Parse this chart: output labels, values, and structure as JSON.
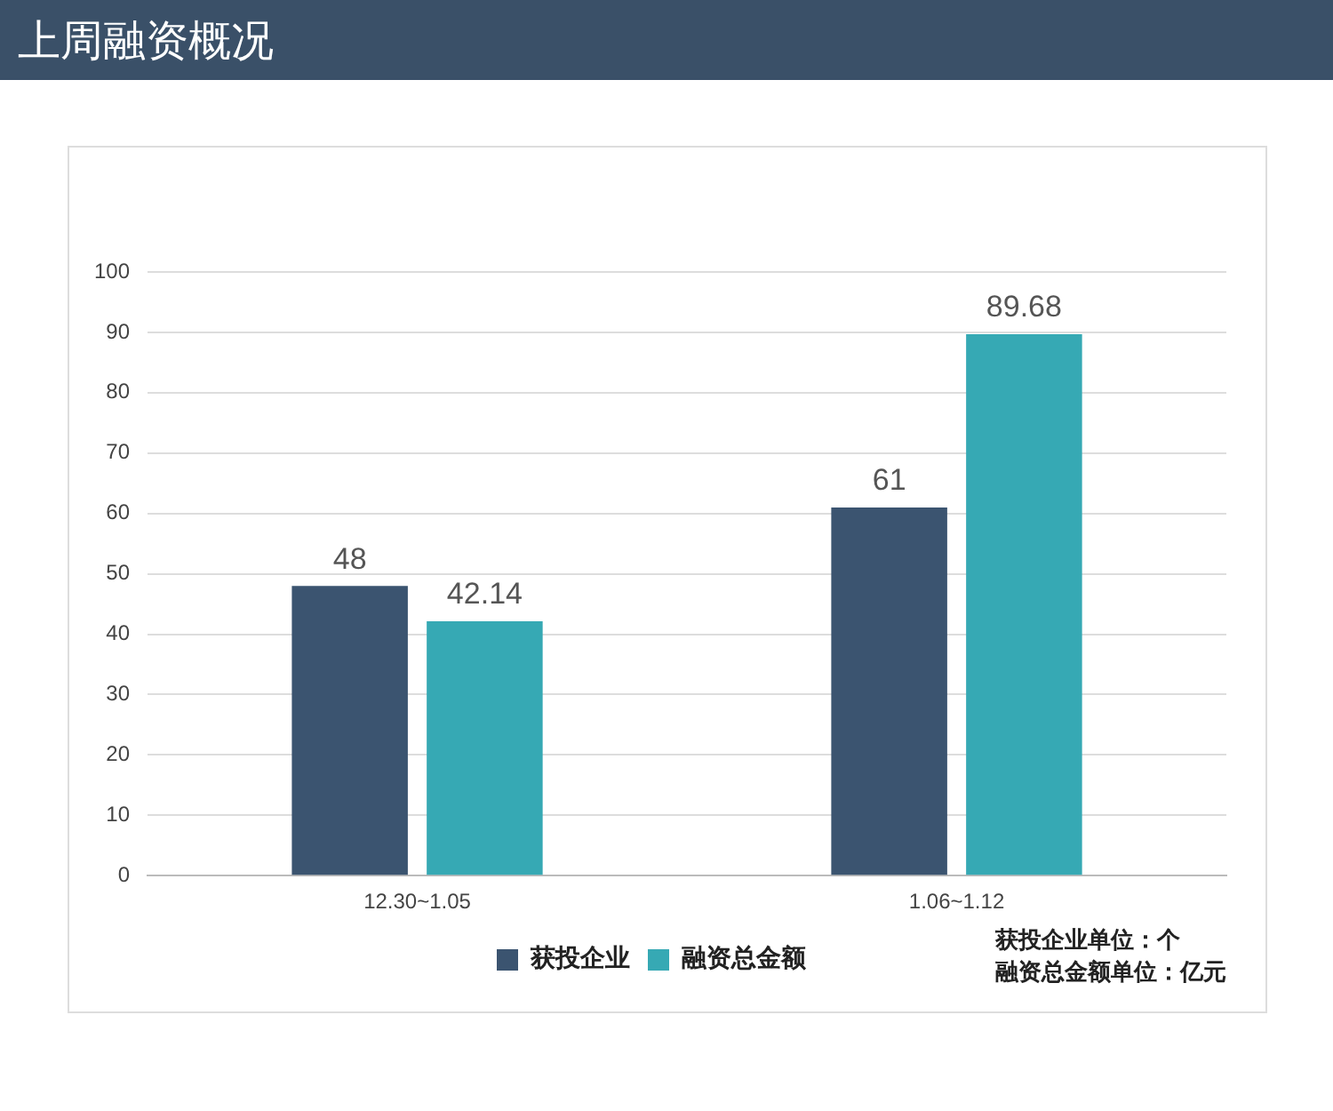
{
  "chart_data": {
    "type": "bar",
    "title": "上周融资概况",
    "categories": [
      "12.30~1.05",
      "1.06~1.12"
    ],
    "series": [
      {
        "name": "获投企业",
        "color": "#3b5470",
        "values": [
          48,
          61
        ]
      },
      {
        "name": "融资总金额",
        "color": "#36a9b4",
        "values": [
          42.14,
          89.68
        ]
      }
    ],
    "ylim": [
      0,
      100
    ],
    "yticks": [
      0,
      10,
      20,
      30,
      40,
      50,
      60,
      70,
      80,
      90,
      100
    ],
    "grid": "y",
    "legend": "bottom",
    "data_labels": true,
    "annotations": [
      "获投企业单位：个",
      "融资总金额单位：亿元"
    ]
  }
}
